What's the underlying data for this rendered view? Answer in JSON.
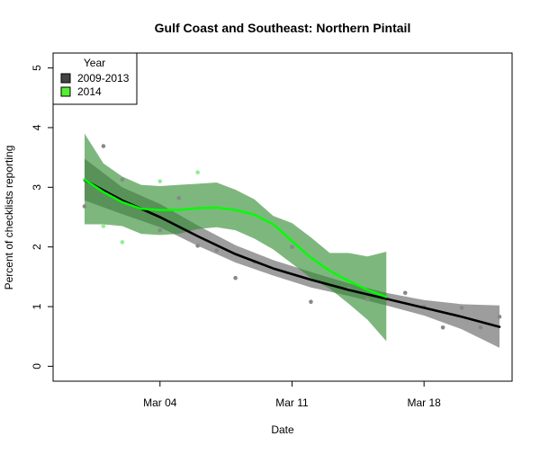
{
  "chart_data": {
    "type": "line",
    "title": "Gulf Coast and Southeast: Northern Pintail",
    "xlabel": "Date",
    "ylabel": "Percent of checklists reporting",
    "x_ticks": [
      "Mar 04",
      "Mar 11",
      "Mar 18"
    ],
    "y_ticks": [
      "0",
      "1",
      "2",
      "3",
      "4",
      "5"
    ],
    "xlim": [
      "2014-02-27",
      "2014-03-22"
    ],
    "ylim": [
      -0.25,
      5.25
    ],
    "grid": false,
    "legend": {
      "title": "Year",
      "placement": "top-left"
    },
    "series": [
      {
        "name": "2009-2013",
        "color": "#000000",
        "band_color": "#777777",
        "x": [
          "2014-02-28",
          "2014-03-02",
          "2014-03-04",
          "2014-03-06",
          "2014-03-08",
          "2014-03-10",
          "2014-03-12",
          "2014-03-14",
          "2014-03-16",
          "2014-03-18",
          "2014-03-20",
          "2014-03-22"
        ],
        "y": [
          3.12,
          2.78,
          2.5,
          2.18,
          1.88,
          1.64,
          1.45,
          1.28,
          1.13,
          0.98,
          0.83,
          0.66
        ],
        "lower": [
          2.78,
          2.55,
          2.33,
          2.02,
          1.74,
          1.52,
          1.32,
          1.18,
          1.02,
          0.85,
          0.62,
          0.31
        ],
        "upper": [
          3.48,
          3.0,
          2.72,
          2.36,
          2.03,
          1.78,
          1.58,
          1.39,
          1.23,
          1.11,
          1.04,
          1.02
        ],
        "points": {
          "color": "#888888",
          "x": [
            "2014-02-28",
            "2014-03-01",
            "2014-03-02",
            "2014-03-04",
            "2014-03-05",
            "2014-03-06",
            "2014-03-07",
            "2014-03-08",
            "2014-03-09",
            "2014-03-11",
            "2014-03-12",
            "2014-03-14",
            "2014-03-15",
            "2014-03-17",
            "2014-03-18",
            "2014-03-19",
            "2014-03-20",
            "2014-03-21",
            "2014-03-22"
          ],
          "y": [
            2.68,
            3.69,
            3.13,
            2.28,
            2.82,
            2.02,
            1.94,
            1.48,
            1.75,
            2.0,
            1.08,
            1.3,
            1.12,
            1.23,
            1.0,
            0.65,
            0.98,
            0.65,
            0.83
          ]
        }
      },
      {
        "name": "2014",
        "color": "#00ff00",
        "band_color": "#2e8b2e",
        "x": [
          "2014-02-28",
          "2014-03-01",
          "2014-03-02",
          "2014-03-03",
          "2014-03-04",
          "2014-03-05",
          "2014-03-06",
          "2014-03-07",
          "2014-03-08",
          "2014-03-09",
          "2014-03-10",
          "2014-03-11",
          "2014-03-12",
          "2014-03-13",
          "2014-03-14",
          "2014-03-15",
          "2014-03-16"
        ],
        "y": [
          3.13,
          2.92,
          2.75,
          2.64,
          2.62,
          2.62,
          2.65,
          2.66,
          2.62,
          2.54,
          2.38,
          2.1,
          1.82,
          1.6,
          1.43,
          1.28,
          1.16
        ],
        "lower": [
          2.38,
          2.38,
          2.35,
          2.22,
          2.2,
          2.22,
          2.3,
          2.33,
          2.28,
          2.14,
          1.96,
          1.72,
          1.48,
          1.3,
          1.05,
          0.78,
          0.42
        ],
        "upper": [
          3.9,
          3.4,
          3.18,
          3.04,
          3.02,
          3.04,
          3.06,
          3.08,
          2.96,
          2.8,
          2.52,
          2.4,
          2.16,
          1.9,
          1.9,
          1.84,
          1.92
        ],
        "points": {
          "color": "#90ee90",
          "x": [
            "2014-03-01",
            "2014-03-02",
            "2014-03-04",
            "2014-03-06"
          ],
          "y": [
            2.35,
            2.08,
            3.1,
            3.25
          ]
        }
      }
    ]
  }
}
